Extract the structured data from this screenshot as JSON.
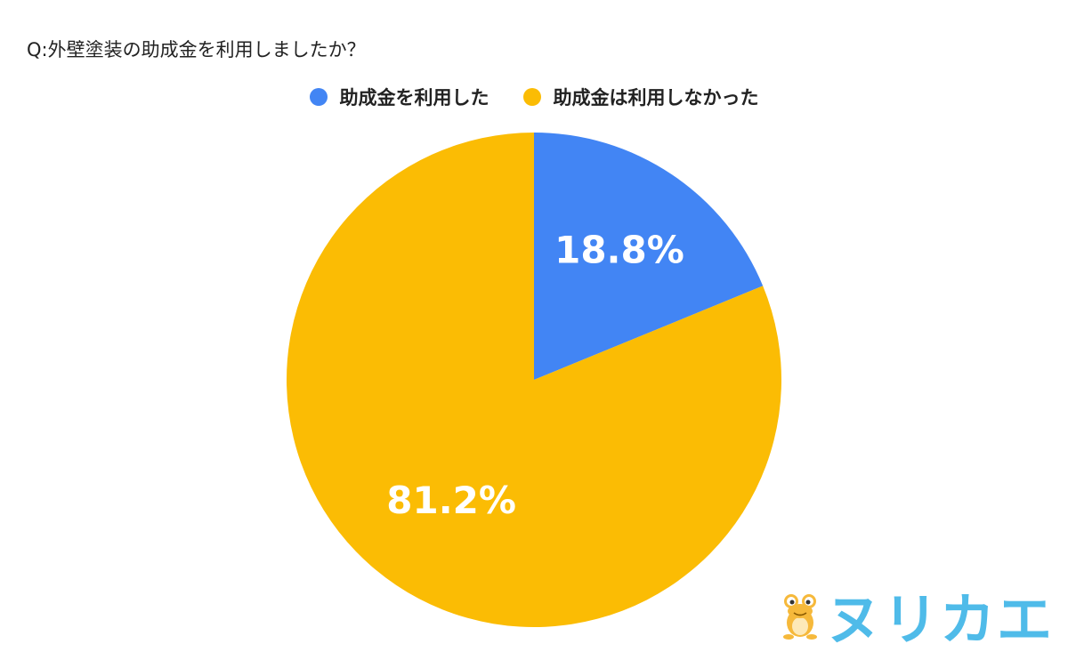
{
  "chart_data": {
    "type": "pie",
    "title": "Q:外壁塗装の助成金を利用しましたか？",
    "series": [
      {
        "name": "助成金を利用した",
        "value": 18.8,
        "label": "18.8%",
        "color": "#4285f4"
      },
      {
        "name": "助成金は利用しなかった",
        "value": 81.2,
        "label": "81.2%",
        "color": "#fbbc04"
      }
    ],
    "legend_position": "top"
  },
  "logo": {
    "text": "ヌリカエ",
    "icon": "frog-mascot-icon",
    "color": "#4fbbe9"
  }
}
